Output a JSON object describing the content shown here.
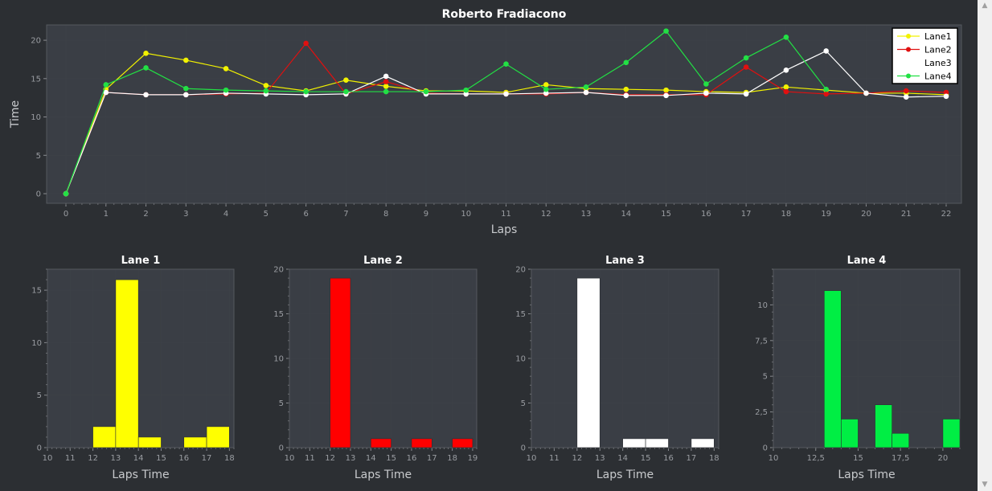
{
  "chart_data": [
    {
      "type": "line",
      "title": "Roberto Fradiacono",
      "xlabel": "Laps",
      "ylabel": "Time",
      "xlim": [
        0,
        22
      ],
      "ylim": [
        0,
        22
      ],
      "xticks": [
        0,
        1,
        2,
        3,
        4,
        5,
        6,
        7,
        8,
        9,
        10,
        11,
        12,
        13,
        14,
        15,
        16,
        17,
        18,
        19,
        20,
        21,
        22
      ],
      "yticks": [
        0,
        5,
        10,
        15,
        20
      ],
      "grid": true,
      "legend": "top-right",
      "series": [
        {
          "name": "Lane1",
          "color": "#f2f200",
          "x": [
            0,
            1,
            2,
            3,
            4,
            5,
            6,
            7,
            8,
            9,
            10,
            11,
            12,
            13,
            14,
            15,
            16,
            17,
            18,
            19,
            20,
            21,
            22
          ],
          "values": [
            0,
            13.6,
            18.3,
            17.4,
            16.3,
            14.1,
            13.4,
            14.8,
            14.0,
            13.4,
            13.4,
            13.2,
            14.2,
            13.7,
            13.6,
            13.5,
            13.3,
            13.2,
            13.9,
            13.5,
            13.1,
            13.1,
            12.9
          ]
        },
        {
          "name": "Lane2",
          "color": "#e01010",
          "x": [
            0,
            1,
            2,
            3,
            4,
            5,
            6,
            7,
            8,
            9,
            10,
            11,
            12,
            13,
            14,
            15,
            16,
            17,
            18,
            19,
            20,
            21,
            22
          ],
          "values": [
            0,
            13.2,
            12.9,
            12.9,
            13.0,
            13.1,
            19.6,
            13.0,
            14.6,
            13.1,
            13.0,
            13.0,
            13.0,
            13.2,
            12.9,
            12.9,
            12.9,
            16.5,
            13.3,
            13.0,
            13.1,
            13.4,
            13.2
          ]
        },
        {
          "name": "Lane3",
          "color": "#ffffff",
          "x": [
            0,
            1,
            2,
            3,
            4,
            5,
            6,
            7,
            8,
            9,
            10,
            11,
            12,
            13,
            14,
            15,
            16,
            17,
            18,
            19,
            20,
            21,
            22
          ],
          "values": [
            0,
            13.2,
            12.9,
            12.9,
            13.1,
            13.0,
            12.9,
            13.0,
            15.3,
            13.0,
            13.0,
            13.0,
            13.1,
            13.2,
            12.8,
            12.8,
            13.1,
            13.0,
            16.1,
            18.6,
            13.1,
            12.6,
            12.7
          ]
        },
        {
          "name": "Lane4",
          "color": "#22e044",
          "x": [
            0,
            1,
            2,
            3,
            4,
            5,
            6,
            7,
            8,
            9,
            10,
            11,
            12,
            13,
            14,
            15,
            16,
            17,
            18,
            19,
            20,
            21,
            22
          ],
          "values": [
            0,
            14.2,
            16.4,
            13.7,
            13.5,
            13.4,
            13.3,
            13.3,
            13.3,
            13.3,
            13.5,
            16.9,
            13.6,
            13.9,
            17.1,
            21.2,
            14.3,
            17.7,
            20.4,
            13.6,
            null,
            null,
            null
          ]
        }
      ]
    },
    {
      "type": "bar",
      "title": "Lane 1",
      "xlabel": "Laps Time",
      "ylabel": "",
      "color": "#ffff00",
      "xlim": [
        10,
        18.2
      ],
      "ylim": [
        0,
        17
      ],
      "xticks": [
        10,
        11,
        12,
        13,
        14,
        15,
        16,
        17,
        18
      ],
      "xticklabels": [
        "10",
        "11",
        "12",
        "13",
        "14",
        "15",
        "16",
        "17",
        "18"
      ],
      "yticks": [
        0,
        5,
        10,
        15
      ],
      "yticklabels": [
        "0",
        "5",
        "10",
        "15"
      ],
      "bin_width": 1,
      "bins": [
        12,
        13,
        14,
        16,
        17
      ],
      "values": [
        2,
        16,
        1,
        1,
        2
      ]
    },
    {
      "type": "bar",
      "title": "Lane 2",
      "xlabel": "Laps Time",
      "ylabel": "",
      "color": "#ff0000",
      "xlim": [
        10,
        19.2
      ],
      "ylim": [
        0,
        20
      ],
      "xticks": [
        10,
        11,
        12,
        13,
        14,
        15,
        16,
        17,
        18,
        19
      ],
      "xticklabels": [
        "10",
        "11",
        "12",
        "13",
        "14",
        "15",
        "16",
        "17",
        "18",
        "19"
      ],
      "yticks": [
        0,
        5,
        10,
        15,
        20
      ],
      "yticklabels": [
        "0",
        "5",
        "10",
        "15",
        "20"
      ],
      "bin_width": 1,
      "bins": [
        12,
        14,
        16,
        18
      ],
      "values": [
        19,
        1,
        1,
        1
      ]
    },
    {
      "type": "bar",
      "title": "Lane 3",
      "xlabel": "Laps Time",
      "ylabel": "",
      "color": "#ffffff",
      "xlim": [
        10,
        18.2
      ],
      "ylim": [
        0,
        20
      ],
      "xticks": [
        10,
        11,
        12,
        13,
        14,
        15,
        16,
        17,
        18
      ],
      "xticklabels": [
        "10",
        "11",
        "12",
        "13",
        "14",
        "15",
        "16",
        "17",
        "18"
      ],
      "yticks": [
        0,
        5,
        10,
        15,
        20
      ],
      "yticklabels": [
        "0",
        "5",
        "10",
        "15",
        "20"
      ],
      "bin_width": 1,
      "bins": [
        12,
        14,
        15,
        17
      ],
      "values": [
        19,
        1,
        1,
        1
      ]
    },
    {
      "type": "bar",
      "title": "Lane 4",
      "xlabel": "Laps Time",
      "ylabel": "",
      "color": "#00ee44",
      "xlim": [
        10,
        21
      ],
      "ylim": [
        0,
        12.5
      ],
      "xticks": [
        10,
        12.5,
        15,
        17.5,
        20
      ],
      "xticklabels": [
        "10",
        "12,5",
        "15",
        "17,5",
        "20"
      ],
      "yticks": [
        0,
        2.5,
        5,
        7.5,
        10
      ],
      "yticklabels": [
        "0",
        "2,5",
        "5",
        "7,5",
        "10"
      ],
      "bin_width": 1,
      "bins": [
        13,
        14,
        16,
        17,
        20
      ],
      "values": [
        11,
        2,
        3,
        1,
        2
      ]
    }
  ]
}
